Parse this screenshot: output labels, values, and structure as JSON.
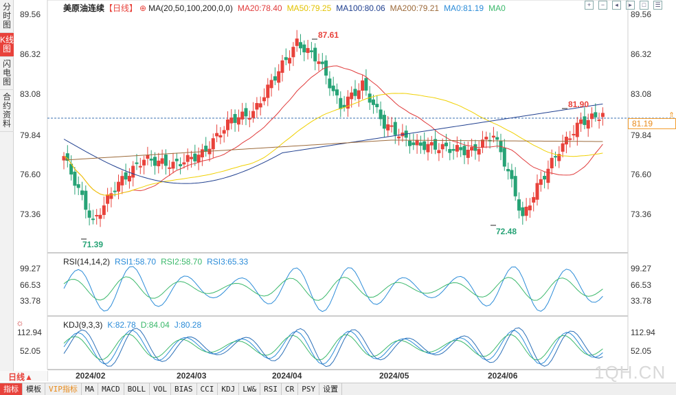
{
  "left_tabs": [
    {
      "label": "分时图",
      "active": false
    },
    {
      "label": "K线图",
      "active": true
    },
    {
      "label": "闪电图",
      "active": false
    },
    {
      "label": "合约资料",
      "active": false
    }
  ],
  "main_legend": {
    "name": "美原油连续",
    "period": "【日线】",
    "ma_params": "MA(20,50,100,200,0,0)",
    "ma20": "MA20:78.40",
    "ma50": "MA50:79.25",
    "ma100": "MA100:80.06",
    "ma200": "MA200:79.21",
    "ma0a": "MA0:81.19",
    "ma0b": "MA0"
  },
  "colors": {
    "up": "#e8423b",
    "down": "#27a376",
    "ma20": "#e03a3a",
    "ma50": "#f0d000",
    "ma100": "#1f3f8f",
    "ma200": "#9c6a3a",
    "ma0": "#2a8bd8"
  },
  "price_axis": {
    "labels": [
      "89.56",
      "86.32",
      "83.08",
      "79.84",
      "76.60",
      "73.36"
    ],
    "current": "81.19"
  },
  "annotations": {
    "high": "87.61",
    "low": "71.39",
    "low2": "72.48",
    "last": "81.90"
  },
  "rsi": {
    "legend": "RSI(14,14,2)",
    "rsi1": "RSI1:58.70",
    "rsi2": "RSI2:58.70",
    "rsi3": "RSI3:65.33",
    "axis": [
      "99.27",
      "66.53",
      "33.78"
    ]
  },
  "kdj": {
    "legend": "KDJ(9,3,3)",
    "k": "K:82.78",
    "d": "D:84.04",
    "j": "J:80.28",
    "axis": [
      "112.94",
      "52.05"
    ]
  },
  "period_button": "日线▲",
  "dates": [
    "2024/02",
    "2024/03",
    "2024/04",
    "2024/05",
    "2024/06"
  ],
  "toolbar_icons": [
    "zoom-in-icon",
    "zoom-out-icon",
    "move-left-icon",
    "move-right-icon",
    "fullscreen-icon",
    "settings-icon"
  ],
  "bottom_tabs": [
    {
      "label": "指标",
      "active": true
    },
    {
      "label": "模板"
    },
    {
      "label": "VIP指标",
      "vip": true
    },
    {
      "label": "MA"
    },
    {
      "label": "MACD"
    },
    {
      "label": "BOLL"
    },
    {
      "label": "VOL"
    },
    {
      "label": "BIAS"
    },
    {
      "label": "CCI"
    },
    {
      "label": "KDJ"
    },
    {
      "label": "LW&"
    },
    {
      "label": "RSI"
    },
    {
      "label": "CR"
    },
    {
      "label": "PSY"
    },
    {
      "label": "设置"
    }
  ],
  "watermark": "1QH.CN"
}
